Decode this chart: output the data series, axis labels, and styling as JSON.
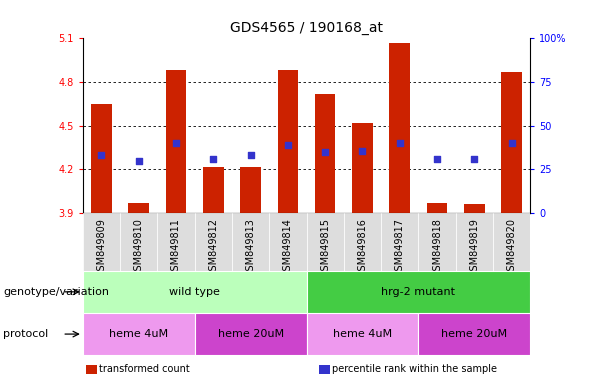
{
  "title": "GDS4565 / 190168_at",
  "samples": [
    "GSM849809",
    "GSM849810",
    "GSM849811",
    "GSM849812",
    "GSM849813",
    "GSM849814",
    "GSM849815",
    "GSM849816",
    "GSM849817",
    "GSM849818",
    "GSM849819",
    "GSM849820"
  ],
  "bar_tops": [
    4.65,
    3.97,
    4.88,
    4.22,
    4.22,
    4.88,
    4.72,
    4.52,
    5.07,
    3.97,
    3.96,
    4.87
  ],
  "bar_bottom": 3.9,
  "blue_dots": [
    4.3,
    4.26,
    4.38,
    4.27,
    4.3,
    4.37,
    4.32,
    4.33,
    4.38,
    4.27,
    4.27,
    4.38
  ],
  "ylim_left": [
    3.9,
    5.1
  ],
  "yticks_left": [
    3.9,
    4.2,
    4.5,
    4.8,
    5.1
  ],
  "yticks_right": [
    0,
    25,
    50,
    75,
    100
  ],
  "yticks_right_labels": [
    "0",
    "25",
    "50",
    "75",
    "100%"
  ],
  "bar_color": "#cc2200",
  "dot_color": "#3333cc",
  "genotype_groups": [
    {
      "label": "wild type",
      "start": 0,
      "end": 6,
      "color": "#bbffbb"
    },
    {
      "label": "hrg-2 mutant",
      "start": 6,
      "end": 12,
      "color": "#44cc44"
    }
  ],
  "protocol_groups": [
    {
      "label": "heme 4uM",
      "start": 0,
      "end": 3,
      "color": "#ee99ee"
    },
    {
      "label": "heme 20uM",
      "start": 3,
      "end": 6,
      "color": "#cc44cc"
    },
    {
      "label": "heme 4uM",
      "start": 6,
      "end": 9,
      "color": "#ee99ee"
    },
    {
      "label": "heme 20uM",
      "start": 9,
      "end": 12,
      "color": "#cc44cc"
    }
  ],
  "legend_items": [
    {
      "label": "transformed count",
      "color": "#cc2200"
    },
    {
      "label": "percentile rank within the sample",
      "color": "#3333cc"
    }
  ],
  "label_fontsize": 8,
  "tick_fontsize": 7,
  "title_fontsize": 10,
  "geno_label": "genotype/variation",
  "prot_label": "protocol"
}
